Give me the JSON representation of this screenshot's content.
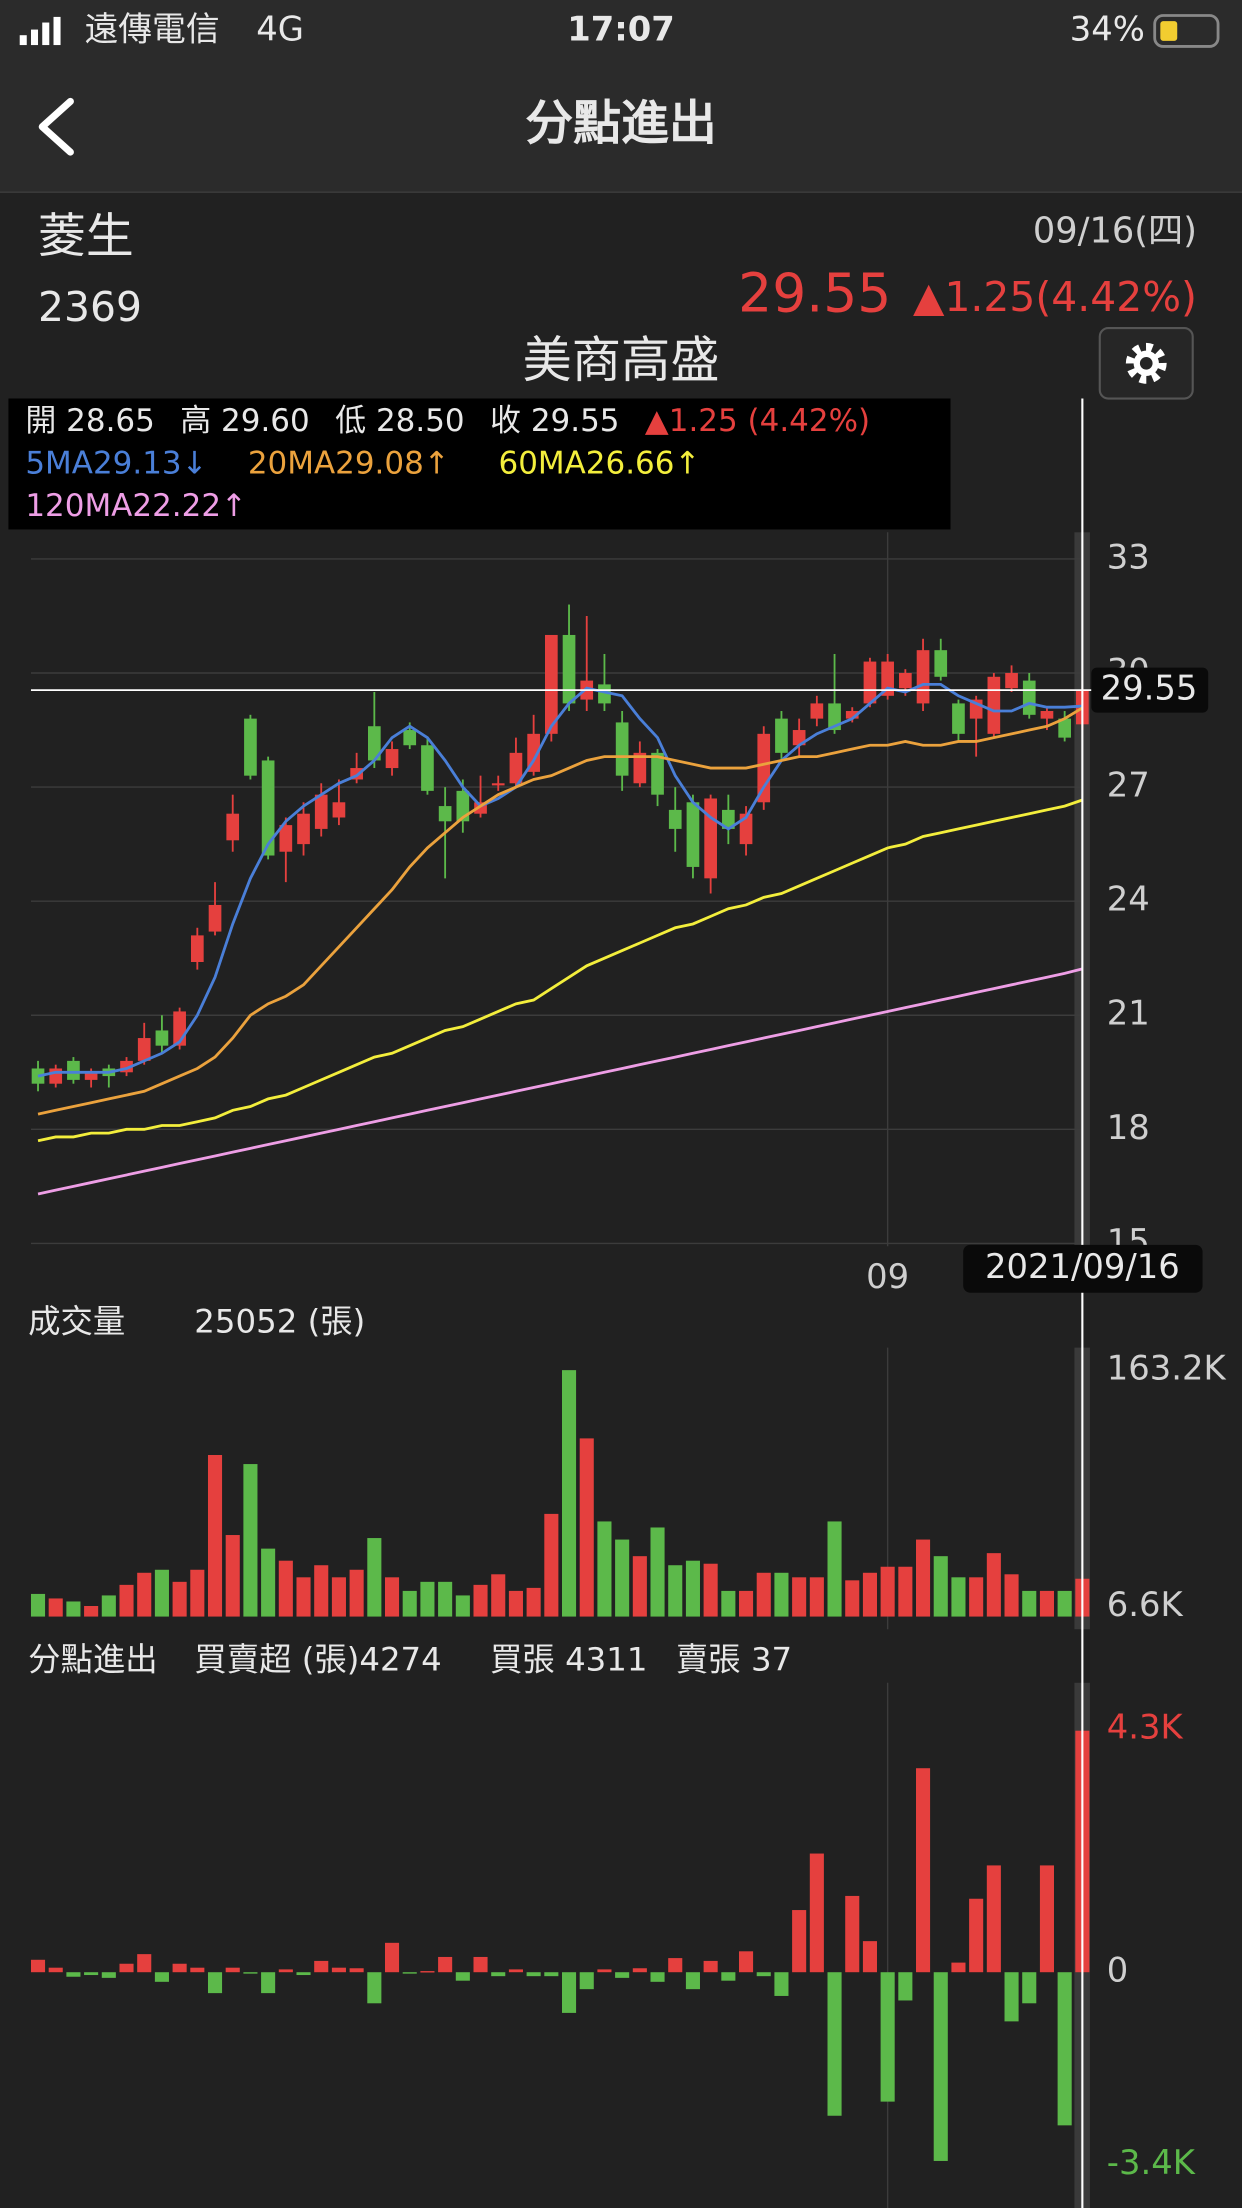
{
  "status_bar": {
    "carrier": "遠傳電信",
    "network": "4G",
    "time": "17:07",
    "battery": "34%"
  },
  "nav": {
    "title": "分點進出"
  },
  "stock": {
    "name": "菱生",
    "code": "2369",
    "date": "09/16(四)",
    "price": "29.55",
    "change": "▲1.25(4.42%)"
  },
  "broker": "美商高盛",
  "ohlc_info": [
    "開 28.65",
    "高 29.60",
    "低 28.50",
    "收 29.55",
    "▲1.25 (4.42%)"
  ],
  "price_tag": "29.55",
  "chart_data": [
    {
      "type": "candlestick",
      "categories": [
        null,
        null,
        null,
        null,
        null,
        null,
        null,
        null,
        null,
        null,
        null,
        null,
        null,
        null,
        null,
        null,
        null,
        null,
        null,
        null,
        null,
        null,
        null,
        null,
        null,
        null,
        null,
        null,
        null,
        null,
        null,
        null,
        null,
        null,
        null,
        null,
        null,
        null,
        null,
        null,
        null,
        null,
        null,
        null,
        null,
        null,
        null,
        null,
        "09",
        null,
        null,
        null,
        null,
        null,
        null,
        null,
        null,
        null,
        null,
        "2021/09/16"
      ],
      "open": [
        19.6,
        19.2,
        19.8,
        19.3,
        19.6,
        19.5,
        19.8,
        20.6,
        20.2,
        22.4,
        23.2,
        25.6,
        28.8,
        27.7,
        25.3,
        25.5,
        25.9,
        26.2,
        27.2,
        28.6,
        27.5,
        28.5,
        28.1,
        26.5,
        26.9,
        26.3,
        27.1,
        27.1,
        27.4,
        28.4,
        31.0,
        29.3,
        29.7,
        28.7,
        27.1,
        27.9,
        26.4,
        26.6,
        24.6,
        26.4,
        25.5,
        26.6,
        28.8,
        28.1,
        28.8,
        29.2,
        28.8,
        29.2,
        29.4,
        29.6,
        29.2,
        30.6,
        29.2,
        28.8,
        28.4,
        29.6,
        29.8,
        28.8,
        28.8,
        28.65
      ],
      "high": [
        19.8,
        19.7,
        19.9,
        19.6,
        19.7,
        19.9,
        20.8,
        21.0,
        21.2,
        23.3,
        24.5,
        26.8,
        28.9,
        27.8,
        26.2,
        26.6,
        27.1,
        27.2,
        27.9,
        29.5,
        28.2,
        28.7,
        28.3,
        27.0,
        27.2,
        27.3,
        27.3,
        28.3,
        28.9,
        31.0,
        31.8,
        31.5,
        30.5,
        29.0,
        28.2,
        28.0,
        27.0,
        26.8,
        26.8,
        26.8,
        26.5,
        28.6,
        29.0,
        28.8,
        29.4,
        30.5,
        29.1,
        30.4,
        30.5,
        30.1,
        30.9,
        30.9,
        29.3,
        29.4,
        30.0,
        30.2,
        30.0,
        29.1,
        29.0,
        29.6
      ],
      "low": [
        19.0,
        19.1,
        19.2,
        19.1,
        19.1,
        19.4,
        19.7,
        20.0,
        20.1,
        22.2,
        23.1,
        25.3,
        27.2,
        25.1,
        24.5,
        25.2,
        25.7,
        26.0,
        27.1,
        27.5,
        27.3,
        28.0,
        26.8,
        24.6,
        25.8,
        26.2,
        26.9,
        27.0,
        27.3,
        28.2,
        29.0,
        29.0,
        29.0,
        26.9,
        27.0,
        26.5,
        25.3,
        24.6,
        24.2,
        25.5,
        25.2,
        26.4,
        27.7,
        27.8,
        28.6,
        28.4,
        28.7,
        29.1,
        29.3,
        29.4,
        29.0,
        29.8,
        28.2,
        27.8,
        28.3,
        29.5,
        28.8,
        28.5,
        28.2,
        28.5
      ],
      "close": [
        19.2,
        19.6,
        19.3,
        19.5,
        19.4,
        19.8,
        20.4,
        20.2,
        21.1,
        23.1,
        23.9,
        26.3,
        27.3,
        25.2,
        26.0,
        26.3,
        26.8,
        26.6,
        27.5,
        27.7,
        28.0,
        28.1,
        26.9,
        26.1,
        26.1,
        26.6,
        27.1,
        27.9,
        28.4,
        31.0,
        29.2,
        29.8,
        29.2,
        27.3,
        27.9,
        26.8,
        25.9,
        24.9,
        26.7,
        25.9,
        26.3,
        28.4,
        27.9,
        28.5,
        29.2,
        28.5,
        29.0,
        30.3,
        30.3,
        30.0,
        30.6,
        29.9,
        28.4,
        29.3,
        29.9,
        30.0,
        28.9,
        29.0,
        28.3,
        29.55
      ],
      "up_color": "#e5403e",
      "down_color": "#5cb94a",
      "series": [
        {
          "name": "5MA",
          "legend_value": "29.13↓",
          "color": "#4a7fd8",
          "values": [
            19.4,
            19.5,
            19.5,
            19.5,
            19.5,
            19.6,
            19.8,
            20.0,
            20.3,
            21.0,
            22.0,
            23.4,
            24.6,
            25.5,
            26.1,
            26.5,
            26.8,
            27.1,
            27.3,
            27.7,
            28.3,
            28.6,
            28.3,
            27.7,
            27.0,
            26.5,
            26.7,
            27.0,
            27.7,
            28.6,
            29.2,
            29.6,
            29.5,
            29.4,
            28.8,
            28.3,
            27.3,
            26.6,
            26.2,
            25.9,
            26.2,
            27.0,
            27.7,
            28.1,
            28.4,
            28.6,
            28.8,
            29.2,
            29.6,
            29.5,
            29.7,
            29.7,
            29.4,
            29.2,
            29.0,
            29.0,
            29.2,
            29.1,
            29.1,
            29.13
          ]
        },
        {
          "name": "20MA",
          "legend_value": "29.08↑",
          "color": "#eba23d",
          "values": [
            18.4,
            18.5,
            18.6,
            18.7,
            18.8,
            18.9,
            19.0,
            19.2,
            19.4,
            19.6,
            19.9,
            20.4,
            21.0,
            21.3,
            21.5,
            21.8,
            22.3,
            22.8,
            23.3,
            23.8,
            24.3,
            24.9,
            25.4,
            25.8,
            26.2,
            26.5,
            26.8,
            27.0,
            27.2,
            27.3,
            27.5,
            27.7,
            27.8,
            27.8,
            27.8,
            27.8,
            27.7,
            27.6,
            27.5,
            27.5,
            27.5,
            27.6,
            27.7,
            27.8,
            27.8,
            27.9,
            28.0,
            28.1,
            28.1,
            28.2,
            28.1,
            28.1,
            28.2,
            28.2,
            28.3,
            28.4,
            28.5,
            28.6,
            28.8,
            29.08
          ]
        },
        {
          "name": "60MA",
          "legend_value": "26.66↑",
          "color": "#f3ee3c",
          "values": [
            17.7,
            17.8,
            17.8,
            17.9,
            17.9,
            18.0,
            18.0,
            18.1,
            18.1,
            18.2,
            18.3,
            18.5,
            18.6,
            18.8,
            18.9,
            19.1,
            19.3,
            19.5,
            19.7,
            19.9,
            20.0,
            20.2,
            20.4,
            20.6,
            20.7,
            20.9,
            21.1,
            21.3,
            21.4,
            21.7,
            22.0,
            22.3,
            22.5,
            22.7,
            22.9,
            23.1,
            23.3,
            23.4,
            23.6,
            23.8,
            23.9,
            24.1,
            24.2,
            24.4,
            24.6,
            24.8,
            25.0,
            25.2,
            25.4,
            25.5,
            25.7,
            25.8,
            25.9,
            26.0,
            26.1,
            26.2,
            26.3,
            26.4,
            26.5,
            26.66
          ]
        },
        {
          "name": "120MA",
          "legend_value": "22.22↑",
          "color": "#ee9ee6",
          "values": [
            16.3,
            16.4,
            16.5,
            16.6,
            16.7,
            16.8,
            16.9,
            17.0,
            17.1,
            17.2,
            17.3,
            17.4,
            17.5,
            17.6,
            17.7,
            17.8,
            17.9,
            18.0,
            18.1,
            18.2,
            18.3,
            18.4,
            18.5,
            18.6,
            18.7,
            18.8,
            18.9,
            19.0,
            19.1,
            19.2,
            19.3,
            19.4,
            19.5,
            19.6,
            19.7,
            19.8,
            19.9,
            20.0,
            20.1,
            20.2,
            20.3,
            20.4,
            20.5,
            20.6,
            20.7,
            20.8,
            20.9,
            21.0,
            21.1,
            21.2,
            21.3,
            21.4,
            21.5,
            21.6,
            21.7,
            21.8,
            21.9,
            22.0,
            22.1,
            22.22
          ]
        }
      ],
      "ylim": [
        15,
        33.7
      ],
      "yticks": [
        15,
        18,
        21,
        24,
        27,
        30,
        33
      ],
      "grid": true
    },
    {
      "type": "bar",
      "title": "成交量",
      "subtitle": "25052 (張)",
      "values": [
        15000,
        12000,
        10000,
        7000,
        14000,
        21000,
        29000,
        31000,
        23000,
        31000,
        107000,
        54000,
        101000,
        45000,
        37000,
        26000,
        34000,
        26000,
        31000,
        52000,
        26000,
        17000,
        23000,
        23000,
        14000,
        21000,
        28000,
        17000,
        19000,
        68000,
        163200,
        118000,
        63000,
        51000,
        40000,
        59000,
        34000,
        37000,
        35000,
        17000,
        17000,
        29000,
        29000,
        26000,
        26000,
        63000,
        24000,
        29000,
        33000,
        33000,
        51000,
        40000,
        26000,
        26000,
        42000,
        28000,
        17000,
        17000,
        17000,
        25052
      ],
      "ylim": [
        0,
        163200
      ],
      "yticks": [
        {
          "value": 163200,
          "label": "163.2K"
        },
        {
          "value": 6600,
          "label": "6.6K"
        }
      ],
      "grid": false
    },
    {
      "type": "bar",
      "title": "分點進出",
      "annotations": [
        "買賣超 (張)4274",
        "買張 4311",
        "賣張 37"
      ],
      "values": [
        220,
        80,
        -80,
        -50,
        -100,
        150,
        320,
        -170,
        150,
        80,
        -370,
        80,
        -20,
        -370,
        50,
        -50,
        200,
        80,
        70,
        -550,
        520,
        -20,
        20,
        270,
        -150,
        270,
        -70,
        50,
        -70,
        -70,
        -720,
        -300,
        50,
        -100,
        70,
        -170,
        250,
        -300,
        200,
        -150,
        370,
        -70,
        -420,
        1100,
        2100,
        -2540,
        1350,
        550,
        -2290,
        -500,
        3610,
        -3340,
        170,
        1300,
        1890,
        -870,
        -550,
        1890,
        -2710,
        4274
      ],
      "pos_color": "#e5403e",
      "neg_color": "#5cb94a",
      "ylim": [
        -3400,
        4300
      ],
      "yticks": [
        {
          "value": 4300,
          "label": "4.3K"
        },
        0,
        {
          "value": -3400,
          "label": "-3.4K"
        }
      ],
      "grid": false
    }
  ]
}
